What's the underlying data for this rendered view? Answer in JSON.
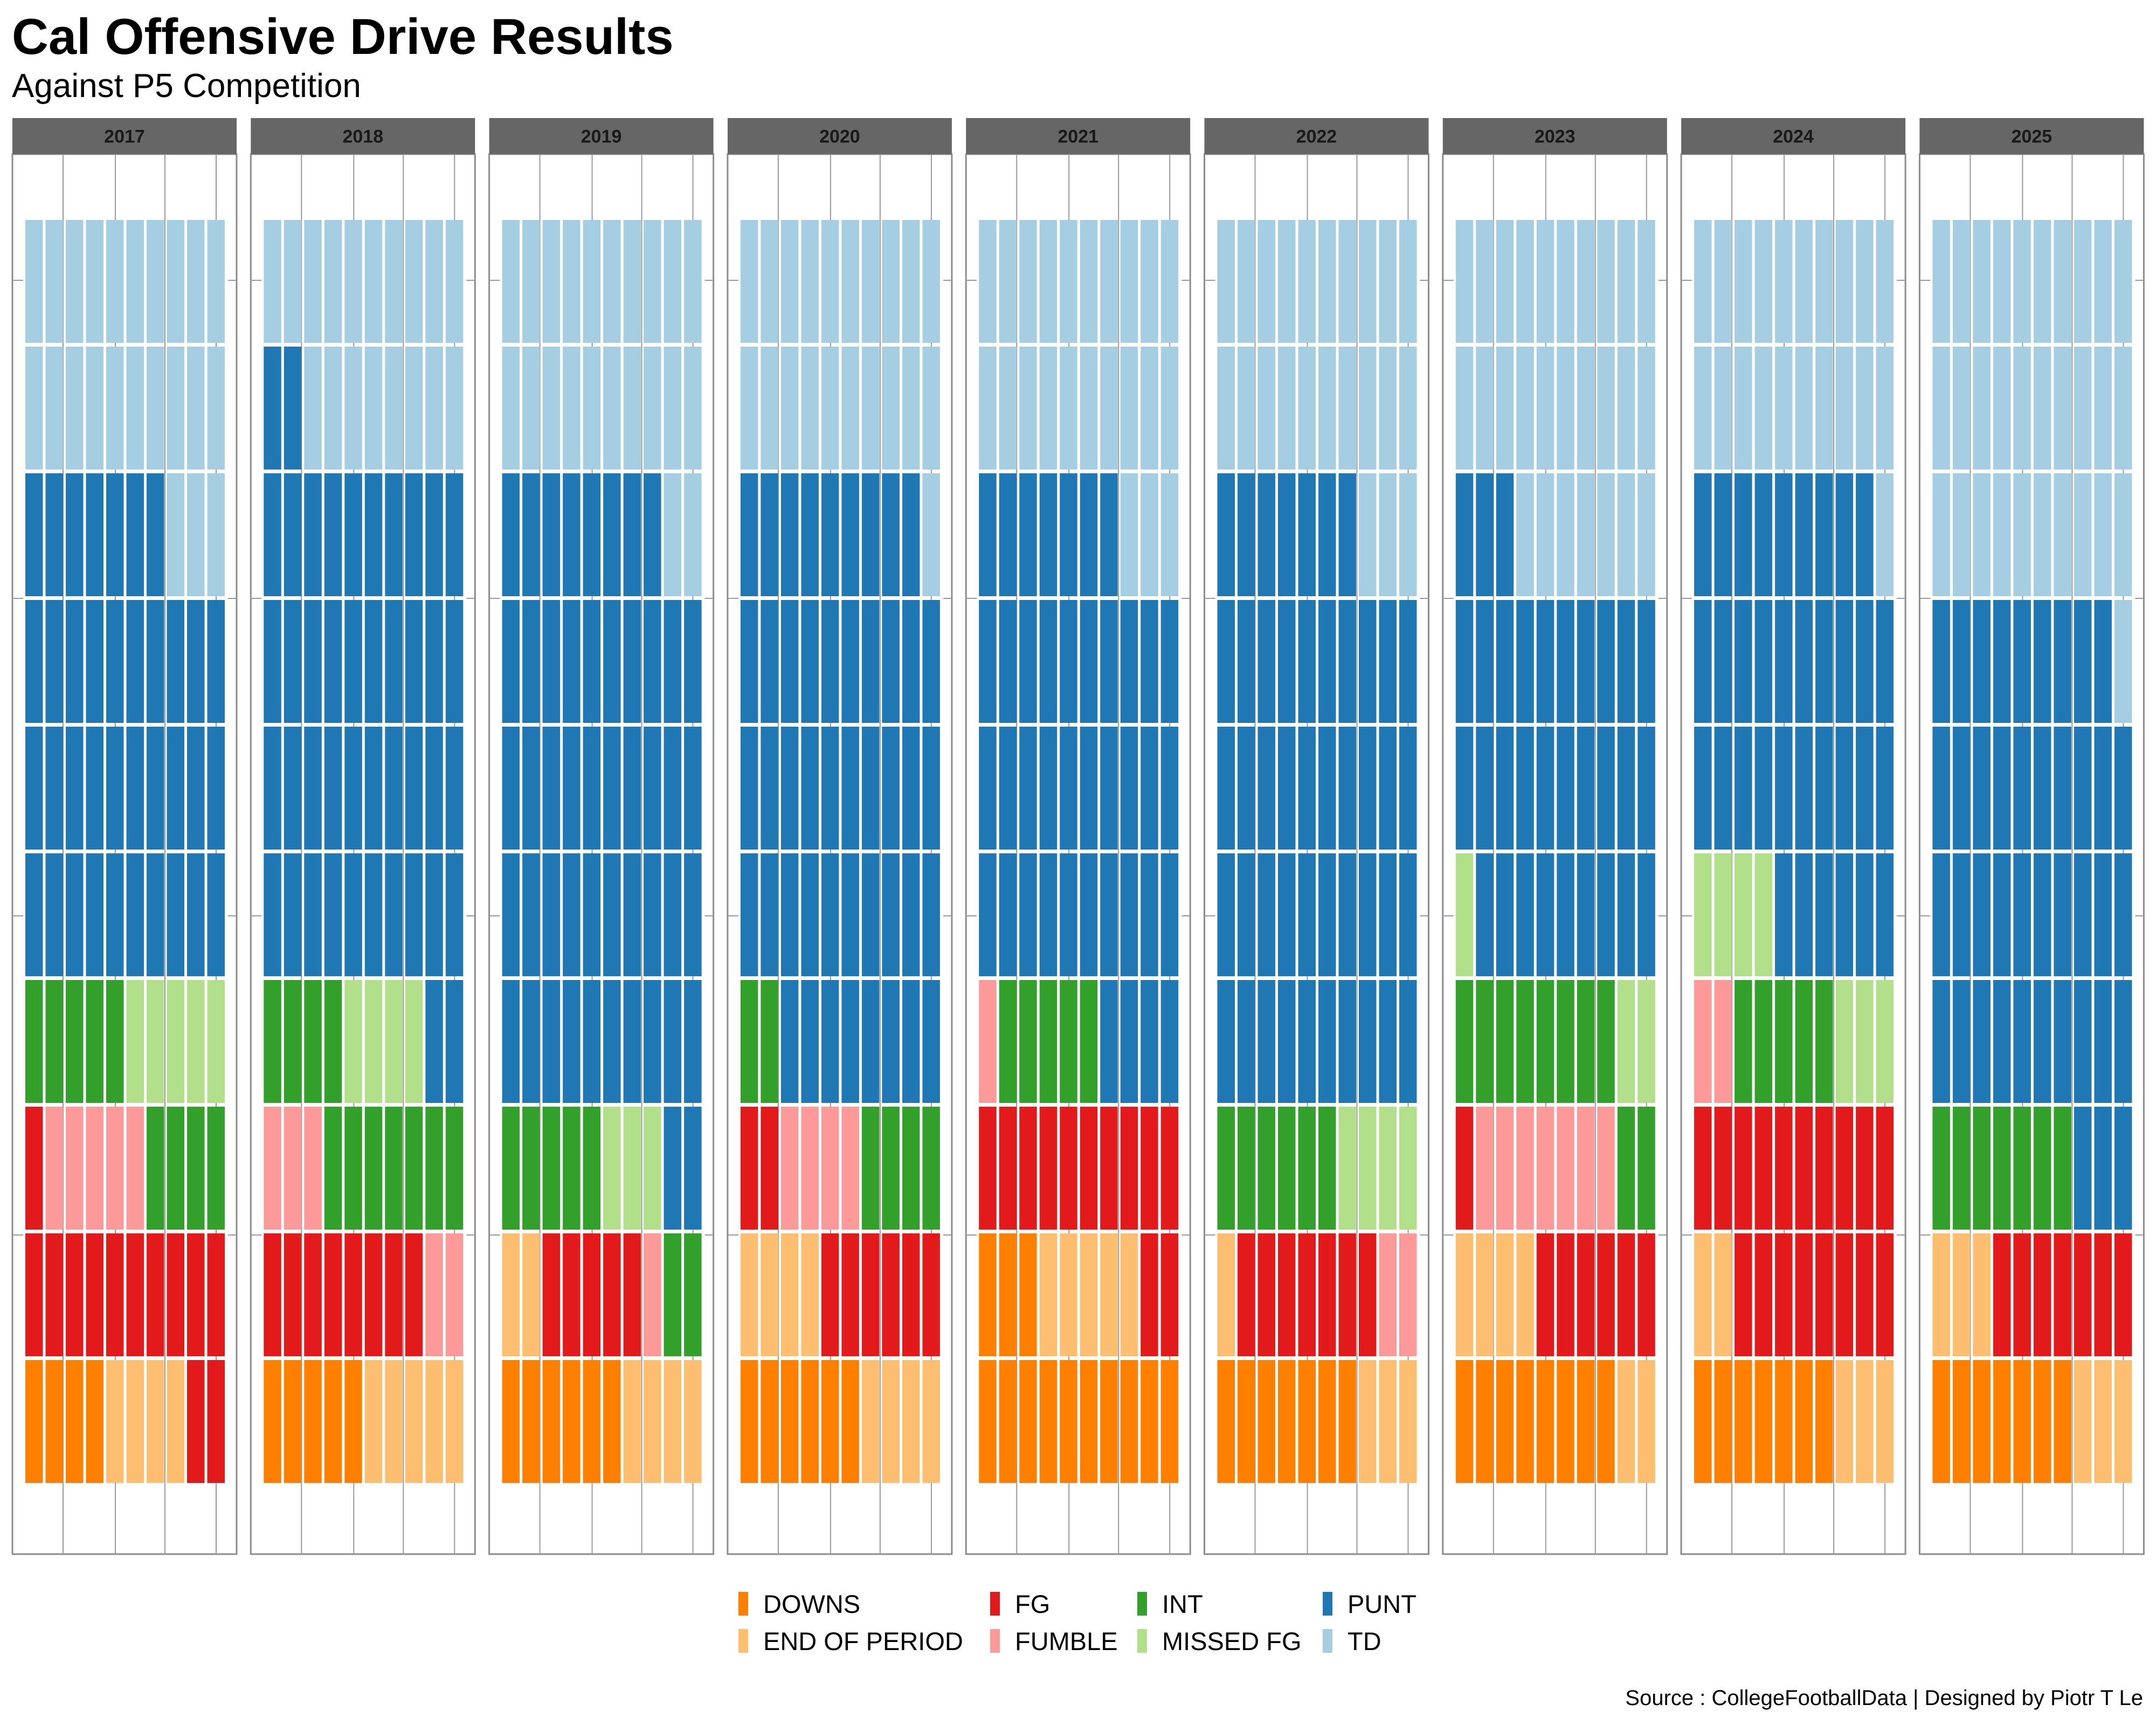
{
  "title": "Cal Offensive Drive Results",
  "subtitle": "Against P5 Competition",
  "source": "Source : CollegeFootballData | Designed by Piotr T Le",
  "chart_data": {
    "type": "waffle",
    "title": "Cal Offensive Drive Results",
    "subtitle": "Against P5 Competition",
    "unit": "percent of drives (100 squares per panel, 10x10, filled bottom-left row by row)",
    "categories": [
      "DOWNS",
      "END OF PERIOD",
      "FG",
      "FUMBLE",
      "INT",
      "MISSED FG",
      "PUNT",
      "TD"
    ],
    "colors": {
      "DOWNS": "#ff7f00",
      "END OF PERIOD": "#fdbf6f",
      "FG": "#e31a1c",
      "FUMBLE": "#fb9a99",
      "INT": "#33a02c",
      "MISSED FG": "#b2df8a",
      "PUNT": "#1f78b4",
      "TD": "#a6cee3"
    },
    "legend": {
      "position": "bottom",
      "rows": 2
    },
    "panels": [
      {
        "year": "2017",
        "values": [
          4,
          4,
          13,
          5,
          9,
          5,
          37,
          23
        ]
      },
      {
        "year": "2018",
        "values": [
          5,
          5,
          8,
          5,
          11,
          4,
          44,
          18
        ]
      },
      {
        "year": "2019",
        "values": [
          6,
          6,
          5,
          1,
          7,
          3,
          50,
          22
        ]
      },
      {
        "year": "2020",
        "values": [
          6,
          8,
          8,
          4,
          6,
          0,
          47,
          21
        ]
      },
      {
        "year": "2021",
        "values": [
          13,
          5,
          12,
          1,
          5,
          0,
          41,
          23
        ]
      },
      {
        "year": "2022",
        "values": [
          7,
          4,
          7,
          2,
          6,
          4,
          47,
          23
        ]
      },
      {
        "year": "2023",
        "values": [
          8,
          6,
          7,
          7,
          10,
          3,
          32,
          27
        ]
      },
      {
        "year": "2024",
        "values": [
          7,
          5,
          18,
          2,
          5,
          7,
          35,
          21
        ]
      },
      {
        "year": "2025",
        "values": [
          7,
          6,
          7,
          0,
          7,
          0,
          42,
          31
        ]
      }
    ]
  },
  "colors": {
    "strip_bg": "#666666",
    "panel_border": "#8c8c8c",
    "grid": "#999999"
  }
}
